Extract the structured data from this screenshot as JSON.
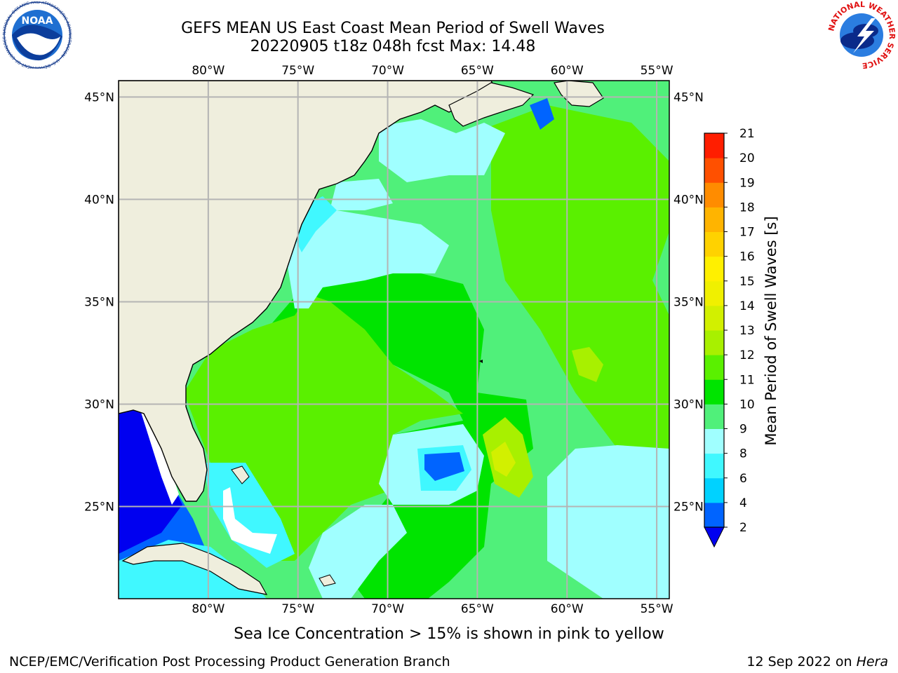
{
  "title_line1": "GEFS MEAN US East Coast Mean Period of Swell Waves",
  "title_line2": "20220905 t18z 048h fcst   Max: 14.48",
  "map": {
    "lon_labels": [
      "80°W",
      "75°W",
      "70°W",
      "65°W",
      "60°W",
      "55°W"
    ],
    "lat_labels": [
      "45°N",
      "40°N",
      "35°N",
      "30°N",
      "25°N"
    ],
    "lon_values": [
      -80,
      -75,
      -70,
      -65,
      -60,
      -55
    ],
    "lat_values": [
      45,
      40,
      35,
      30,
      25
    ],
    "lon_range": [
      -85,
      -54.3
    ],
    "lat_range": [
      20.5,
      45.8
    ],
    "colors": {
      "land": "#efeedd",
      "no_data": "#ffffff"
    }
  },
  "colorbar": {
    "label": "Mean Period of Swell Waves [s]",
    "ticks": [
      "21",
      "20",
      "19",
      "18",
      "17",
      "16",
      "15",
      "14",
      "13",
      "12",
      "11",
      "10",
      "9",
      "8",
      "6",
      "4",
      "2"
    ],
    "levels": [
      2,
      4,
      6,
      8,
      9,
      10,
      11,
      12,
      13,
      14,
      15,
      16,
      17,
      18,
      19,
      20,
      21
    ],
    "colors": [
      "#0064ff",
      "#00d2ff",
      "#40f8ff",
      "#a0ffff",
      "#50f07a",
      "#00e400",
      "#5af000",
      "#a8f000",
      "#d2f000",
      "#f0f000",
      "#fff000",
      "#ffd200",
      "#ffb400",
      "#ff8c00",
      "#ff5000",
      "#ff1e00"
    ],
    "under_color": "#0000f0"
  },
  "footer": {
    "note": "Sea Ice Concentration > 15% is shown in pink to yellow",
    "left": "NCEP/EMC/Verification Post Processing Product Generation Branch",
    "right_date": "12 Sep 2022 on ",
    "right_machine": "Hera"
  },
  "logos": {
    "left": "NOAA",
    "left_ring": "NATIONAL OCEANIC AND ATMOSPHERIC ADMINISTRATION · U.S. DEPARTMENT OF COMMERCE ·",
    "right": "NATIONAL WEATHER SERVICE"
  }
}
